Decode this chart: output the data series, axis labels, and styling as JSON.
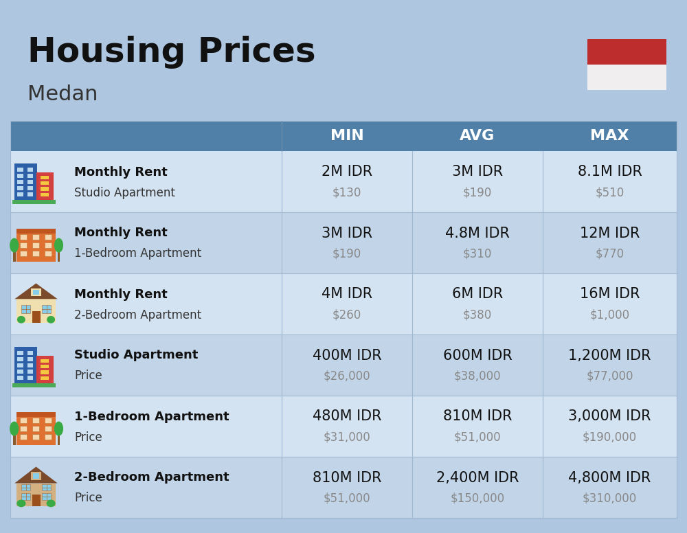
{
  "title": "Housing Prices",
  "subtitle": "Medan",
  "bg_color": "#aec6e0",
  "header_bg": "#5080a8",
  "header_text_color": "#ffffff",
  "row_bg_even": "#d4e3f2",
  "row_bg_odd": "#c2d5e8",
  "divider_color": "#a0b8d0",
  "flag_top": "#be2d2d",
  "flag_bottom": "#f0eeee",
  "col_headers": [
    "MIN",
    "AVG",
    "MAX"
  ],
  "rows": [
    {
      "icon_type": "blue_office",
      "label_bold": "Monthly Rent",
      "label_sub": "Studio Apartment",
      "min_idr": "2M IDR",
      "min_usd": "$130",
      "avg_idr": "3M IDR",
      "avg_usd": "$190",
      "max_idr": "8.1M IDR",
      "max_usd": "$510"
    },
    {
      "icon_type": "orange_apartment",
      "label_bold": "Monthly Rent",
      "label_sub": "1-Bedroom Apartment",
      "min_idr": "3M IDR",
      "min_usd": "$190",
      "avg_idr": "4.8M IDR",
      "avg_usd": "$310",
      "max_idr": "12M IDR",
      "max_usd": "$770"
    },
    {
      "icon_type": "cream_house",
      "label_bold": "Monthly Rent",
      "label_sub": "2-Bedroom Apartment",
      "min_idr": "4M IDR",
      "min_usd": "$260",
      "avg_idr": "6M IDR",
      "avg_usd": "$380",
      "max_idr": "16M IDR",
      "max_usd": "$1,000"
    },
    {
      "icon_type": "blue_office",
      "label_bold": "Studio Apartment",
      "label_sub": "Price",
      "min_idr": "400M IDR",
      "min_usd": "$26,000",
      "avg_idr": "600M IDR",
      "avg_usd": "$38,000",
      "max_idr": "1,200M IDR",
      "max_usd": "$77,000"
    },
    {
      "icon_type": "orange_apartment",
      "label_bold": "1-Bedroom Apartment",
      "label_sub": "Price",
      "min_idr": "480M IDR",
      "min_usd": "$31,000",
      "avg_idr": "810M IDR",
      "avg_usd": "$51,000",
      "max_idr": "3,000M IDR",
      "max_usd": "$190,000"
    },
    {
      "icon_type": "brown_house",
      "label_bold": "2-Bedroom Apartment",
      "label_sub": "Price",
      "min_idr": "810M IDR",
      "min_usd": "$51,000",
      "avg_idr": "2,400M IDR",
      "avg_usd": "$150,000",
      "max_idr": "4,800M IDR",
      "max_usd": "$310,000"
    }
  ]
}
